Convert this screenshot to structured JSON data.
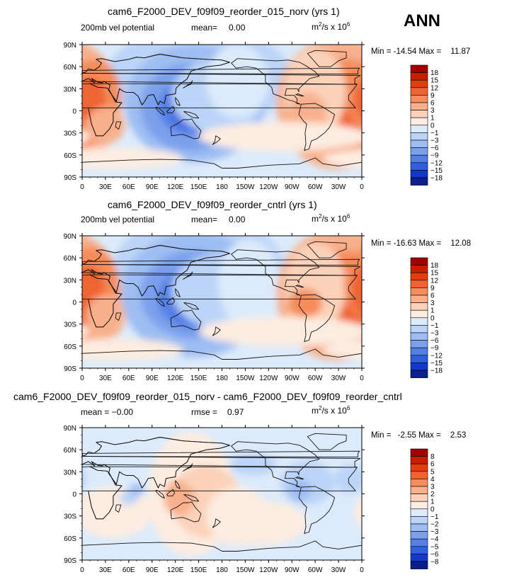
{
  "season": "ANN",
  "units_base": "m",
  "units_exp": "2",
  "units_mid": "/s x 10",
  "units_pow": "6",
  "x_ticks": [
    "0",
    "30E",
    "60E",
    "90E",
    "120E",
    "150E",
    "180",
    "150W",
    "120W",
    "90W",
    "60W",
    "30W",
    "0"
  ],
  "y_ticks": [
    "90N",
    "60N",
    "30N",
    "0",
    "30S",
    "60S",
    "90S"
  ],
  "chart_data": [
    {
      "type": "heatmap",
      "title": "cam6_F2000_DEV_f09f09_reorder_015_norv (yrs 1)",
      "left_label": "200mb vel potential",
      "stat_label": "mean=",
      "stat_value": "0.00",
      "min_label": "Min =",
      "min_value": "-14.54",
      "max_label": "Max =",
      "max_value": "11.87",
      "colorbar_levels": [
        "18",
        "15",
        "12",
        "9",
        "6",
        "3",
        "1",
        "0",
        "−1",
        "−3",
        "−6",
        "−9",
        "−12",
        "−15",
        "−18"
      ],
      "colors": [
        "#a50000",
        "#c81e00",
        "#e43c0a",
        "#f06432",
        "#f58c5a",
        "#f8b08c",
        "#fbd2b9",
        "#fdece0",
        "#dcebfb",
        "#bcd4f7",
        "#9ebdf2",
        "#7aa0ec",
        "#5480e6",
        "#2f5fde",
        "#1438c8",
        "#0a1f8c"
      ]
    },
    {
      "type": "heatmap",
      "title": "cam6_F2000_DEV_f09f09_reorder_cntrl (yrs 1)",
      "left_label": "200mb vel potential",
      "stat_label": "mean=",
      "stat_value": "0.00",
      "min_label": "Min =",
      "min_value": "-16.63",
      "max_label": "Max =",
      "max_value": "12.08",
      "colorbar_levels": [
        "18",
        "15",
        "12",
        "9",
        "6",
        "3",
        "1",
        "0",
        "−1",
        "−3",
        "−6",
        "−9",
        "−12",
        "−15",
        "−18"
      ],
      "colors": [
        "#a50000",
        "#c81e00",
        "#e43c0a",
        "#f06432",
        "#f58c5a",
        "#f8b08c",
        "#fbd2b9",
        "#fdece0",
        "#dcebfb",
        "#bcd4f7",
        "#9ebdf2",
        "#7aa0ec",
        "#5480e6",
        "#2f5fde",
        "#1438c8",
        "#0a1f8c"
      ]
    },
    {
      "type": "heatmap",
      "title": "cam6_F2000_DEV_f09f09_reorder_015_norv - cam6_F2000_DEV_f09f09_reorder_cntrl",
      "left_label": "mean =  −0.00",
      "stat_label": "rmse =",
      "stat_value": "0.97",
      "min_label": "Min =",
      "min_value": "-2.55",
      "max_label": "Max =",
      "max_value": "2.53",
      "colorbar_levels": [
        "8",
        "6",
        "5",
        "4",
        "3",
        "2",
        "1",
        "0",
        "−1",
        "−2",
        "−3",
        "−4",
        "−5",
        "−6",
        "−8"
      ],
      "colors": [
        "#a50000",
        "#c81e00",
        "#e43c0a",
        "#f06432",
        "#f58c5a",
        "#f8b08c",
        "#fbd2b9",
        "#fdece0",
        "#dcebfb",
        "#bcd4f7",
        "#9ebdf2",
        "#7aa0ec",
        "#5480e6",
        "#2f5fde",
        "#1438c8",
        "#0a1f8c"
      ]
    }
  ]
}
